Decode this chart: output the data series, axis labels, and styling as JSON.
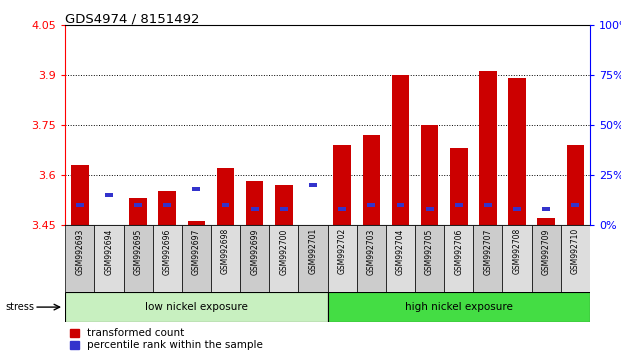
{
  "title": "GDS4974 / 8151492",
  "samples": [
    "GSM992693",
    "GSM992694",
    "GSM992695",
    "GSM992696",
    "GSM992697",
    "GSM992698",
    "GSM992699",
    "GSM992700",
    "GSM992701",
    "GSM992702",
    "GSM992703",
    "GSM992704",
    "GSM992705",
    "GSM992706",
    "GSM992707",
    "GSM992708",
    "GSM992709",
    "GSM992710"
  ],
  "red_values": [
    3.63,
    3.45,
    3.53,
    3.55,
    3.46,
    3.62,
    3.58,
    3.57,
    3.45,
    3.69,
    3.72,
    3.9,
    3.75,
    3.68,
    3.91,
    3.89,
    3.47,
    3.69
  ],
  "blue_percentiles": [
    10,
    15,
    10,
    10,
    18,
    10,
    8,
    8,
    20,
    8,
    10,
    10,
    8,
    10,
    10,
    8,
    8,
    10
  ],
  "ymin": 3.45,
  "ymax": 4.05,
  "yticks_left": [
    3.45,
    3.6,
    3.75,
    3.9,
    4.05
  ],
  "yticks_right_pct": [
    0,
    25,
    50,
    75,
    100
  ],
  "right_ylabels": [
    "0%",
    "25%",
    "50%",
    "75%",
    "100%"
  ],
  "low_nickel_count": 9,
  "bar_color_red": "#cc0000",
  "bar_color_blue": "#3333cc",
  "bar_width": 0.6,
  "low_label": "low nickel exposure",
  "high_label": "high nickel exposure",
  "low_color": "#c8f0c0",
  "high_color": "#44dd44",
  "legend_labels": [
    "transformed count",
    "percentile rank within the sample"
  ],
  "stress_label": "stress"
}
